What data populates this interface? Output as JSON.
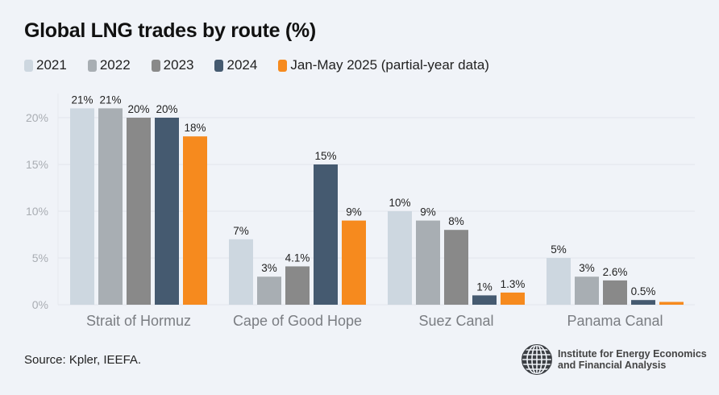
{
  "title": "Global LNG trades by route (%)",
  "source": "Source: Kpler, IEEFA.",
  "logo": {
    "line1": "Institute for Energy Economics",
    "line2": "and Financial Analysis",
    "icon": "globe-icon"
  },
  "legend": [
    {
      "label": "2021",
      "color": "#cdd7e0"
    },
    {
      "label": "2022",
      "color": "#a8aeb3"
    },
    {
      "label": "2023",
      "color": "#898989"
    },
    {
      "label": "2024",
      "color": "#455a70"
    },
    {
      "label": "Jan-May 2025 (partial-year data)",
      "color": "#f68a1e"
    }
  ],
  "chart_data": {
    "type": "bar",
    "title": "Global LNG trades by route (%)",
    "xlabel": "",
    "ylabel": "",
    "ylim": [
      0,
      20
    ],
    "yticks": [
      0,
      5,
      10,
      15,
      20
    ],
    "ytick_labels": [
      "0%",
      "5%",
      "10%",
      "15%",
      "20%"
    ],
    "grid": true,
    "legend_position": "top-left",
    "categories": [
      "Strait of Hormuz",
      "Cape of Good Hope",
      "Suez Canal",
      "Panama Canal"
    ],
    "series": [
      {
        "name": "2021",
        "color": "#cdd7e0",
        "values": [
          21,
          7,
          10,
          5
        ],
        "labels": [
          "21%",
          "7%",
          "10%",
          "5%"
        ]
      },
      {
        "name": "2022",
        "color": "#a8aeb3",
        "values": [
          21,
          3,
          9,
          3
        ],
        "labels": [
          "21%",
          "3%",
          "9%",
          "3%"
        ]
      },
      {
        "name": "2023",
        "color": "#898989",
        "values": [
          20,
          4.1,
          8,
          2.6
        ],
        "labels": [
          "20%",
          "4.1%",
          "8%",
          "2.6%"
        ]
      },
      {
        "name": "2024",
        "color": "#455a70",
        "values": [
          20,
          15,
          1,
          0.5
        ],
        "labels": [
          "20%",
          "15%",
          "1%",
          "0.5%"
        ]
      },
      {
        "name": "Jan-May 2025 (partial-year data)",
        "color": "#f68a1e",
        "values": [
          18,
          9,
          1.3,
          0.3
        ],
        "labels": [
          "18%",
          "9%",
          "1.3%",
          ""
        ]
      }
    ]
  }
}
